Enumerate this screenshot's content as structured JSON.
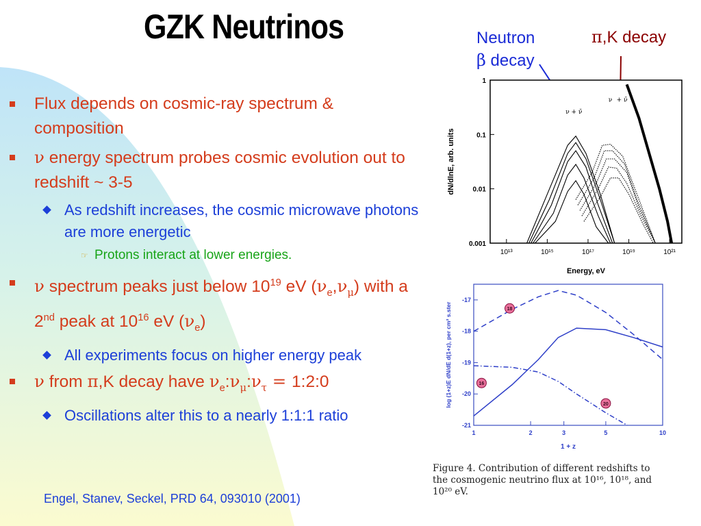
{
  "title": "GZK Neutrinos",
  "callouts": {
    "neutron_line1": "Neutron",
    "neutron_beta": "β",
    "neutron_line2": " decay",
    "pik_greek": "π",
    "pik_text": ",K decay"
  },
  "bullets": {
    "b1": "Flux depends on cosmic-ray spectrum & composition",
    "b2_nu": "ν",
    "b2": " energy spectrum  probes cosmic evolution out to redshift ~ 3-5",
    "b2_sub": "As redshift increases, the cosmic microwave photons are more energetic",
    "b2_subsub": "Protons interact at lower energies.",
    "b3_nu": "ν",
    "b3_a": " spectrum peaks just below 10",
    "b3_exp1": "19",
    "b3_b": " eV (",
    "b3_nue": "ν",
    "b3_e": "e",
    "b3_comma": ",",
    "b3_num": "ν",
    "b3_mu": "μ",
    "b3_c": ") with a 2",
    "b3_nd": "nd",
    "b3_d": " peak at 10",
    "b3_exp2": "16",
    "b3_e2": " eV (",
    "b3_nue2": "ν",
    "b3_e3": "e",
    "b3_f": ")",
    "b3_sub": "All experiments focus on higher energy peak",
    "b4_nu": "ν",
    "b4_a": " from ",
    "b4_pi": "π",
    "b4_b": ",K decay have ",
    "b4_nu1": "ν",
    "b4_e": "e",
    "b4_c1": ":",
    "b4_nu2": "ν",
    "b4_mu": "μ",
    "b4_c2": ":",
    "b4_nu3": "ν",
    "b4_tau": "τ",
    "b4_eq": " = ",
    "b4_ratio": "1:2:0",
    "b4_sub": "Oscillations alter this to a nearly 1:1:1 ratio"
  },
  "reference": "Engel, Stanev, Seckel, PRD 64, 093010 (2001)",
  "chart_data": [
    {
      "type": "line",
      "ylabel": "dN/dlnE, arb. units",
      "xlabel": "Energy, eV",
      "x_ticks": [
        "10¹³",
        "10¹⁵",
        "10¹⁷",
        "10¹⁹",
        "10²¹"
      ],
      "y_ticks": [
        "1",
        "0.1",
        "0.01",
        "0.001"
      ],
      "xlim_log10": [
        12.2,
        21.6
      ],
      "ylim_log10": [
        -3,
        0
      ],
      "labels": {
        "nu_e_bar": "ν + ν̄",
        "nu_mu": "ν",
        "nu_mu_bar": "+ ν̄"
      },
      "series": [
        {
          "values": [
            [
              14.0,
              -3.0
            ],
            [
              15.0,
              -2.1
            ],
            [
              16.0,
              -1.2
            ],
            [
              16.4,
              -1.03
            ],
            [
              16.9,
              -1.35
            ],
            [
              17.6,
              -2.1
            ],
            [
              18.3,
              -3.0
            ]
          ]
        },
        {
          "values": [
            [
              14.1,
              -3.0
            ],
            [
              15.1,
              -2.2
            ],
            [
              16.0,
              -1.35
            ],
            [
              16.4,
              -1.15
            ],
            [
              16.9,
              -1.45
            ],
            [
              17.6,
              -2.2
            ],
            [
              18.3,
              -3.0
            ]
          ]
        },
        {
          "values": [
            [
              14.2,
              -3.0
            ],
            [
              15.2,
              -2.3
            ],
            [
              16.0,
              -1.5
            ],
            [
              16.4,
              -1.3
            ],
            [
              16.9,
              -1.6
            ],
            [
              17.5,
              -2.3
            ],
            [
              18.2,
              -3.0
            ]
          ]
        },
        {
          "values": [
            [
              14.3,
              -3.0
            ],
            [
              15.3,
              -2.45
            ],
            [
              16.0,
              -1.75
            ],
            [
              16.4,
              -1.55
            ],
            [
              16.8,
              -1.8
            ],
            [
              17.5,
              -2.5
            ],
            [
              18.1,
              -3.0
            ]
          ]
        },
        {
          "values": [
            [
              14.4,
              -3.0
            ],
            [
              15.4,
              -2.6
            ],
            [
              16.0,
              -2.05
            ],
            [
              16.4,
              -1.85
            ],
            [
              16.8,
              -2.1
            ],
            [
              17.4,
              -2.7
            ],
            [
              18.0,
              -3.0
            ]
          ]
        },
        {
          "values": [
            [
              16.4,
              -2.2
            ],
            [
              17.2,
              -1.7
            ],
            [
              17.7,
              -1.2
            ],
            [
              18.1,
              -1.18
            ],
            [
              18.7,
              -1.4
            ],
            [
              19.3,
              -2.0
            ],
            [
              20.3,
              -3.0
            ]
          ]
        },
        {
          "values": [
            [
              16.5,
              -2.3
            ],
            [
              17.3,
              -1.8
            ],
            [
              17.8,
              -1.3
            ],
            [
              18.2,
              -1.3
            ],
            [
              18.8,
              -1.55
            ],
            [
              19.4,
              -2.2
            ],
            [
              20.3,
              -3.0
            ]
          ]
        },
        {
          "values": [
            [
              16.6,
              -2.4
            ],
            [
              17.4,
              -1.9
            ],
            [
              17.9,
              -1.45
            ],
            [
              18.3,
              -1.45
            ],
            [
              18.9,
              -1.7
            ],
            [
              19.5,
              -2.35
            ],
            [
              20.3,
              -3.0
            ]
          ]
        },
        {
          "values": [
            [
              16.7,
              -2.5
            ],
            [
              17.5,
              -2.0
            ],
            [
              18.0,
              -1.6
            ],
            [
              18.4,
              -1.62
            ],
            [
              18.9,
              -1.9
            ],
            [
              19.6,
              -2.5
            ],
            [
              20.3,
              -3.0
            ]
          ]
        },
        {
          "values": [
            [
              16.8,
              -2.6
            ],
            [
              17.6,
              -2.15
            ],
            [
              18.1,
              -1.8
            ],
            [
              18.5,
              -1.8
            ],
            [
              19.0,
              -2.1
            ],
            [
              19.7,
              -2.65
            ],
            [
              20.2,
              -3.0
            ]
          ]
        },
        {
          "values": [
            [
              18.9,
              -0.08
            ],
            [
              19.5,
              -0.7
            ],
            [
              20.0,
              -1.35
            ],
            [
              20.5,
              -2.0
            ],
            [
              20.9,
              -2.6
            ],
            [
              21.1,
              -3.0
            ]
          ]
        }
      ]
    },
    {
      "type": "line",
      "ylabel": "log (1+z)E dN/dE d(1+z), per cm² s.ster",
      "xlabel": "1 + z",
      "x_ticks": [
        "1",
        "2",
        "3",
        "5",
        "10"
      ],
      "y_ticks": [
        "-17",
        "-18",
        "-19",
        "-20",
        "-21"
      ],
      "xlim": [
        1,
        10
      ],
      "ylim": [
        -21,
        -16.5
      ],
      "markers": [
        "16",
        "18",
        "20"
      ],
      "series": [
        {
          "values": [
            [
              1.0,
              -18.0
            ],
            [
              1.6,
              -17.3
            ],
            [
              2.2,
              -16.9
            ],
            [
              2.8,
              -16.7
            ],
            [
              3.5,
              -16.85
            ],
            [
              5.0,
              -17.4
            ],
            [
              7.0,
              -18.1
            ],
            [
              10.0,
              -18.9
            ]
          ]
        },
        {
          "values": [
            [
              1.0,
              -20.7
            ],
            [
              1.6,
              -19.7
            ],
            [
              2.2,
              -18.9
            ],
            [
              2.8,
              -18.2
            ],
            [
              3.5,
              -17.9
            ],
            [
              5.0,
              -17.95
            ],
            [
              7.0,
              -18.2
            ],
            [
              10.0,
              -18.5
            ]
          ]
        },
        {
          "values": [
            [
              1.0,
              -19.1
            ],
            [
              1.6,
              -19.15
            ],
            [
              2.2,
              -19.3
            ],
            [
              2.8,
              -19.6
            ],
            [
              3.5,
              -20.0
            ],
            [
              5.0,
              -20.6
            ],
            [
              6.5,
              -21.0
            ]
          ]
        }
      ]
    }
  ],
  "caption": {
    "l1": "Figure 4.  Contribution of different redshifts to",
    "l2": "the cosmogenic neutrino flux at 10¹⁶, 10¹⁸, and",
    "l3": "10²⁰ eV."
  }
}
